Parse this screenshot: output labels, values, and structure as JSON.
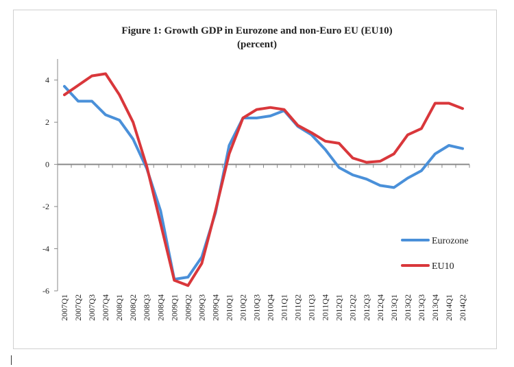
{
  "chart_data": {
    "type": "line",
    "title": "Figure 1: Growth GDP in Eurozone  and non-Euro EU (EU10)",
    "subtitle": "(percent)",
    "xlabel": "",
    "ylabel": "",
    "ylim": [
      -6,
      5
    ],
    "yticks": [
      -6,
      -4,
      -2,
      0,
      2,
      4
    ],
    "grid": false,
    "legend_position": "bottom-right",
    "categories": [
      "2007Q1",
      "2007Q2",
      "2007Q3",
      "2007Q4",
      "2008Q1",
      "2008Q2",
      "2008Q3",
      "2008Q4",
      "2009Q1",
      "2009Q2",
      "2009Q3",
      "2009Q4",
      "2010Q1",
      "2010Q2",
      "2010Q3",
      "2010Q4",
      "2011Q1",
      "2011Q2",
      "2011Q3",
      "2011Q4",
      "2012Q1",
      "2012Q2",
      "2012Q3",
      "2012Q4",
      "2013Q1",
      "2013Q2",
      "2013Q3",
      "2013Q4",
      "2014Q1",
      "2014Q2"
    ],
    "series": [
      {
        "name": "Eurozone",
        "color": "#4a90d9",
        "values": [
          3.7,
          3.0,
          3.0,
          2.35,
          2.1,
          1.2,
          -0.2,
          -2.2,
          -5.45,
          -5.35,
          -4.4,
          -2.3,
          0.9,
          2.2,
          2.2,
          2.3,
          2.55,
          1.8,
          1.4,
          0.7,
          -0.15,
          -0.5,
          -0.7,
          -1.0,
          -1.1,
          -0.65,
          -0.3,
          0.5,
          0.9,
          0.75
        ]
      },
      {
        "name": "EU10",
        "color": "#d9373b",
        "values": [
          3.3,
          3.75,
          4.2,
          4.3,
          3.3,
          2.0,
          -0.1,
          -2.8,
          -5.5,
          -5.75,
          -4.7,
          -2.2,
          0.5,
          2.2,
          2.6,
          2.7,
          2.6,
          1.85,
          1.5,
          1.1,
          1.0,
          0.3,
          0.1,
          0.15,
          0.5,
          1.4,
          1.7,
          2.9,
          2.9,
          2.65
        ]
      }
    ]
  }
}
